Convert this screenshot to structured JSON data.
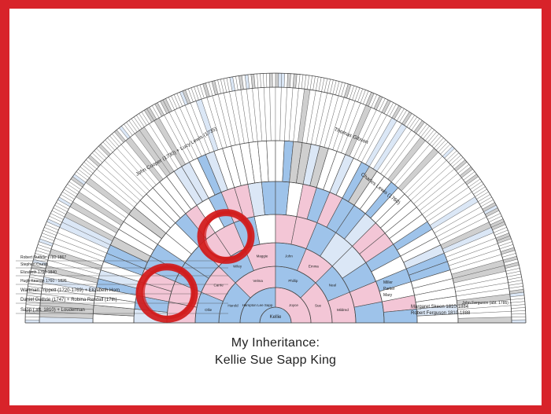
{
  "caption": {
    "line1": "My Inheritance:",
    "line2": "Kellie Sue Sapp King"
  },
  "colors": {
    "border": "#d8232a",
    "male": "#9ec3ea",
    "male_dark": "#5b8fd0",
    "female": "#f3c6d6",
    "light": "#dbe7f6",
    "grey": "#cfcfcf",
    "highlight_circle": "#d11a1a",
    "line": "#4a4a4a"
  },
  "fan": {
    "center_label": "Kellie",
    "ring_labels": [
      [
        "Hampton Lee Sapp",
        "Joyce"
      ],
      [
        "Harold",
        "Velma",
        "Phillip",
        "Sue"
      ],
      [
        "Ollie",
        "Carrie",
        "Wiley",
        "Maggie",
        "John",
        "Emma",
        "Neal",
        "Mildred"
      ]
    ],
    "left_rows": [
      "Sapp (.aft. 1810) +      Louderman",
      "Daniel Guthrie (1747) + Robina Rendall (17th)",
      "Wattman Trippett (1720-1769) + Elizabeth Horn",
      "Hugh Keenan 1760 - 1826",
      "Elizabeth 1760-1840",
      "Stephen Crump",
      "Robert Guthrie 1780-1867"
    ],
    "right_rows": [
      "Robert Ferguson 1810-1888",
      "Margaret Skeen 1810-1884",
      "John Ferguson (abt. 1785) +",
      "Mary",
      "Parker",
      "Miller"
    ],
    "top_labels": [
      "John Cooper (1730) + Lucy Lewis (1735)",
      "Charles Lewis (1760)",
      "Thomas Gibson"
    ],
    "highlight_count": 2
  }
}
